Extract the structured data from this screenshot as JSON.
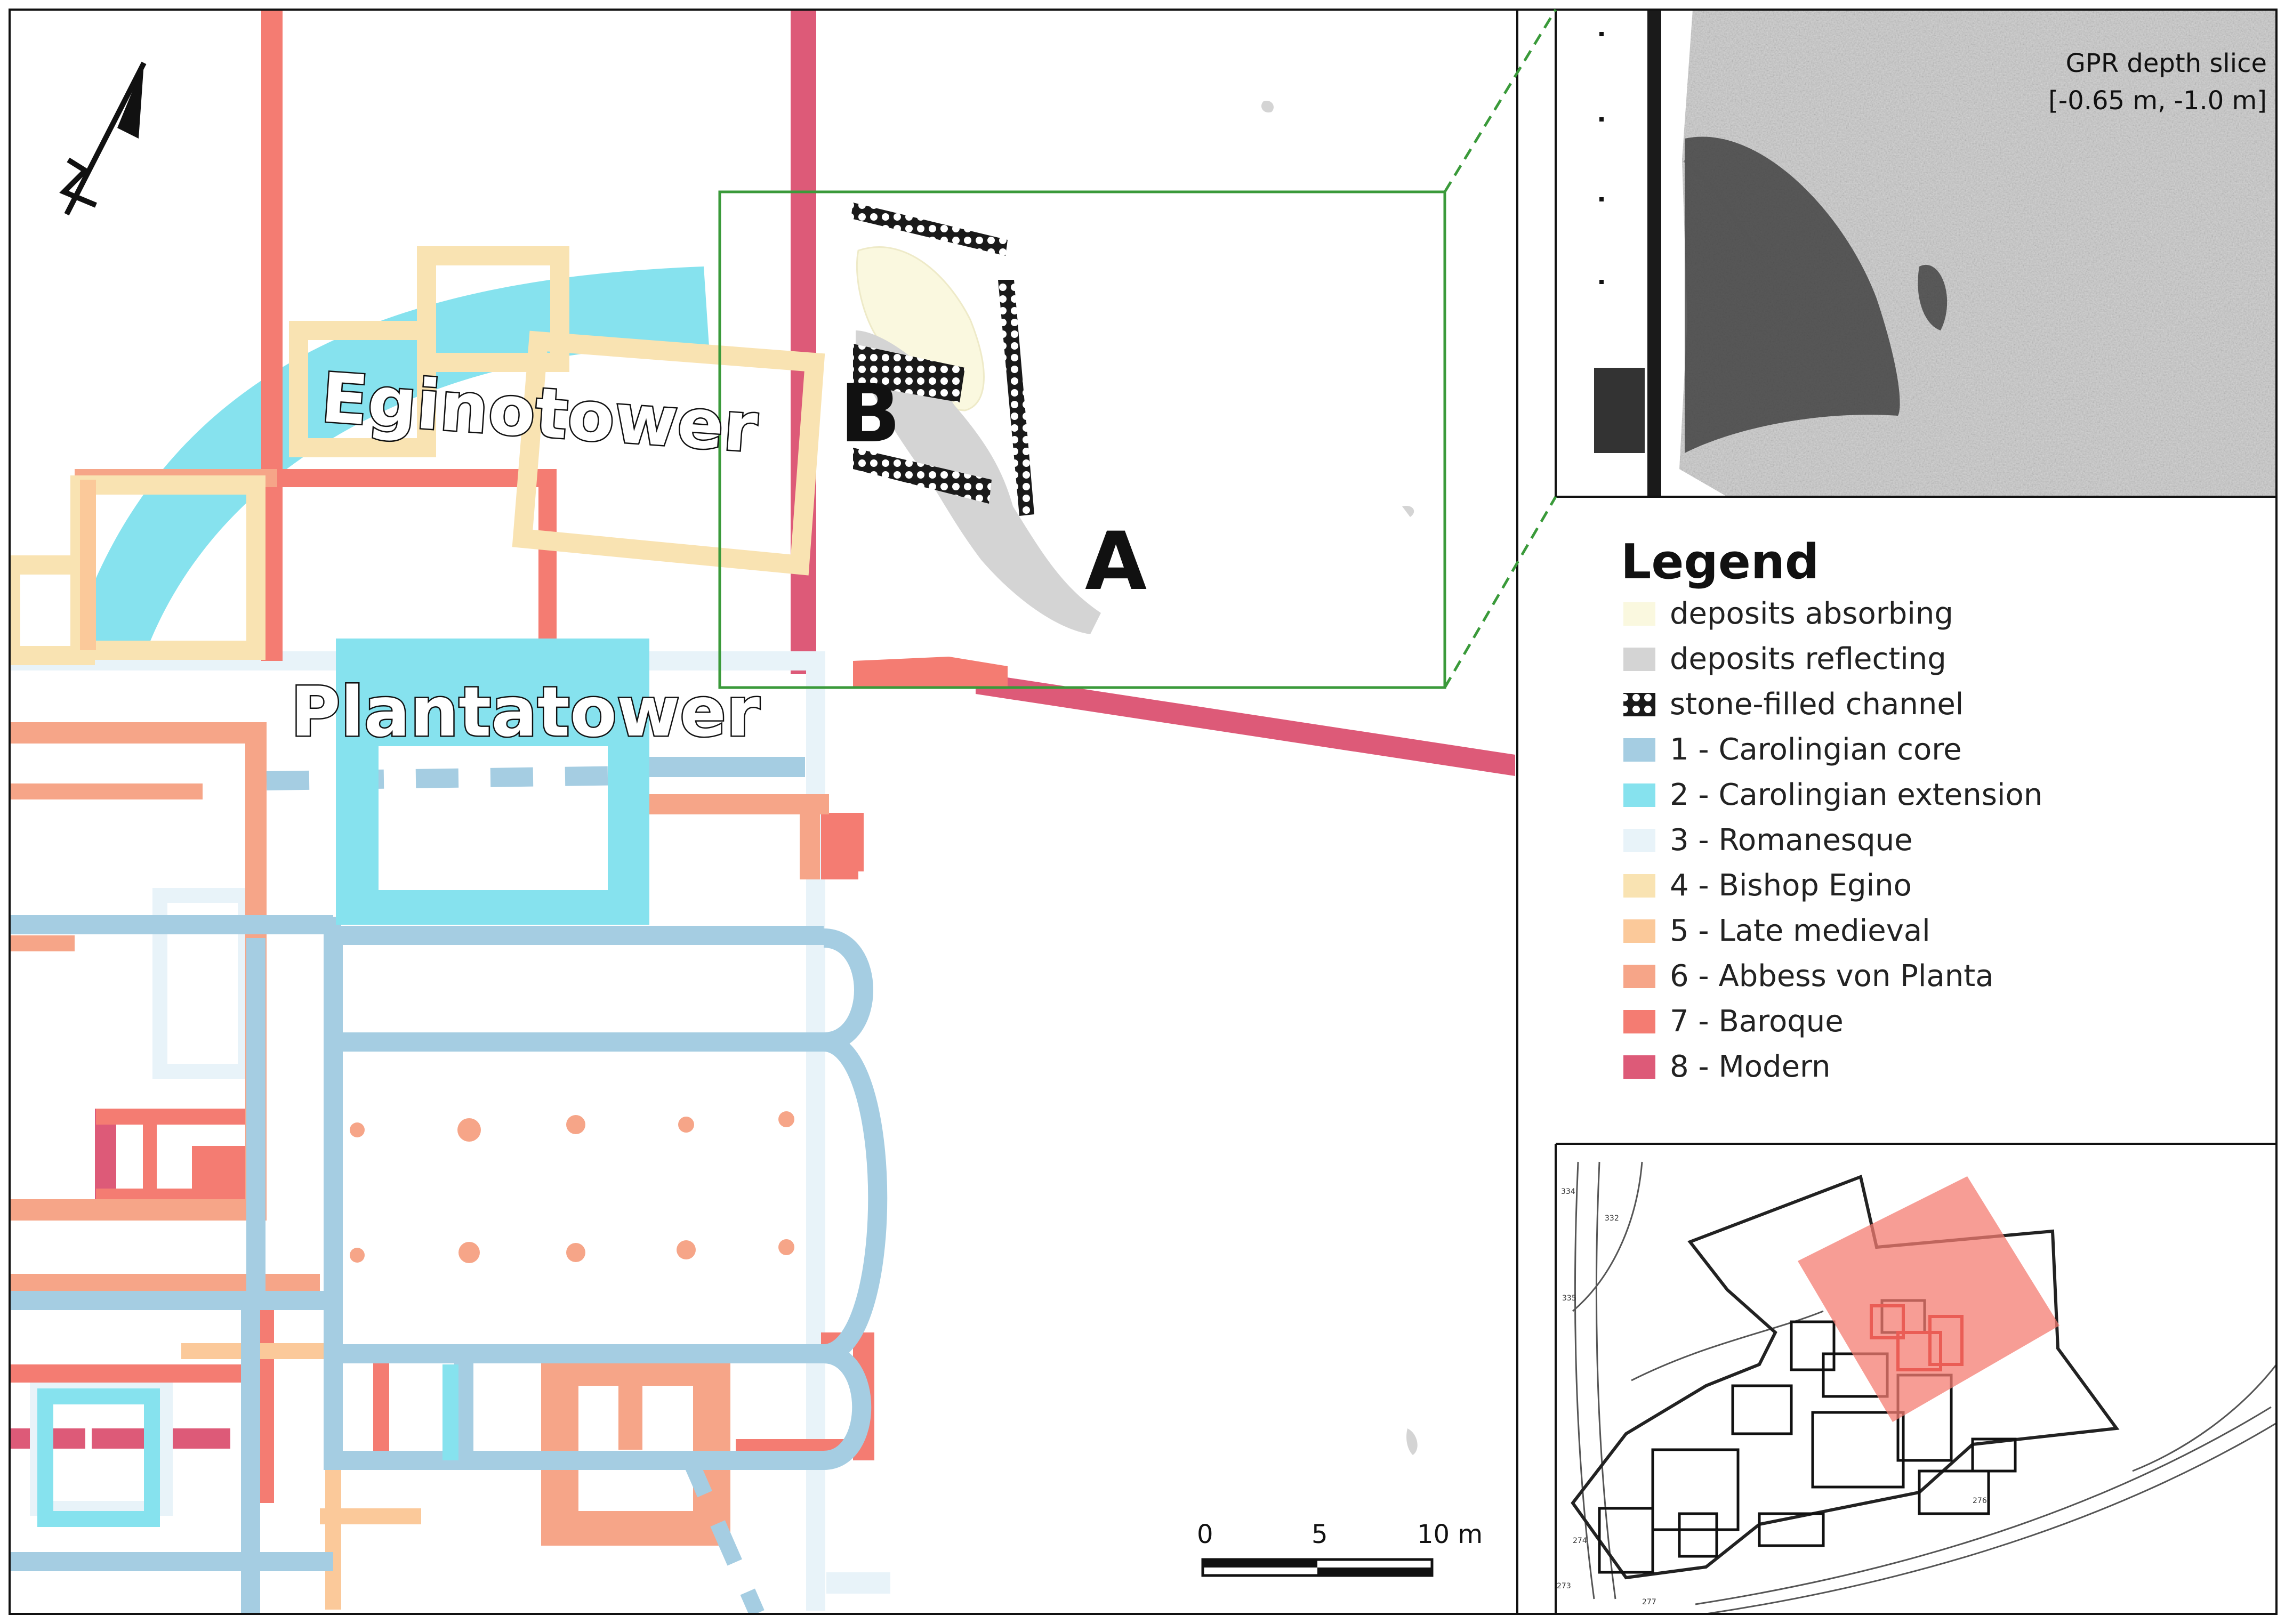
{
  "map": {
    "labels": {
      "eginotower": "Eginotower",
      "plantatower": "Plantatower",
      "label_a": "A",
      "label_b": "B"
    },
    "north_arrow_icon": "north-arrow-icon",
    "scale_bar": {
      "ticks": [
        "0",
        "5",
        "10 m"
      ]
    }
  },
  "gpr_inset": {
    "title_line1": "GPR depth slice",
    "title_line2": "[-0.65 m, -1.0 m]"
  },
  "legend": {
    "title": "Legend",
    "items": [
      {
        "label": "deposits absorbing",
        "color": "#FAF8DF",
        "pattern": "none"
      },
      {
        "label": "deposits reflecting",
        "color": "#D4D4D4",
        "pattern": "none"
      },
      {
        "label": "stone-filled channel",
        "color": "#1A1A1A",
        "pattern": "dots"
      },
      {
        "label": "1 - Carolingian core",
        "color": "#A5CDE2",
        "pattern": "none"
      },
      {
        "label": "2 - Carolingian extension",
        "color": "#86E2EE",
        "pattern": "none"
      },
      {
        "label": "3 - Romanesque",
        "color": "#E8F3F9",
        "pattern": "none"
      },
      {
        "label": "4 - Bishop Egino",
        "color": "#F9E3B2",
        "pattern": "none"
      },
      {
        "label": "5 - Late medieval",
        "color": "#FBC99A",
        "pattern": "none"
      },
      {
        "label": "6 - Abbess von Planta",
        "color": "#F6A588",
        "pattern": "none"
      },
      {
        "label": "7 - Baroque",
        "color": "#F47C72",
        "pattern": "none"
      },
      {
        "label": "8 - Modern",
        "color": "#DD5A78",
        "pattern": "none"
      }
    ]
  },
  "overview_inset": {
    "parcel_numbers": [
      "334",
      "332",
      "335",
      "276",
      "274",
      "273",
      "277"
    ]
  }
}
